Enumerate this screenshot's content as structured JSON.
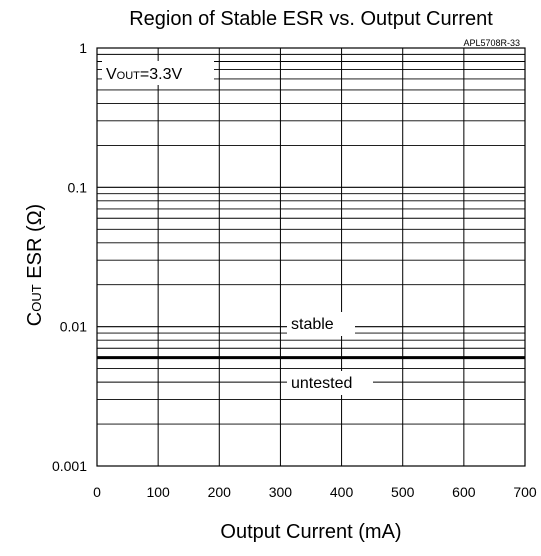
{
  "chart_data": {
    "type": "line",
    "title": "Region of Stable ESR vs. Output Current",
    "figure_id": "APL5708R-33",
    "xlabel": "Output Current (mA)",
    "ylabel": "COUT ESR (Ω)",
    "xlim": [
      0,
      700
    ],
    "ylim": [
      0.001,
      1
    ],
    "y_scale": "log",
    "grid": true,
    "x_ticks": [
      "0",
      "100",
      "200",
      "300",
      "400",
      "500",
      "600",
      "700"
    ],
    "y_ticks": [
      {
        "value": 1,
        "label": "1"
      },
      {
        "value": 0.1,
        "label": "0.1"
      },
      {
        "value": 0.01,
        "label": "0.01"
      },
      {
        "value": 0.001,
        "label": "0.001"
      }
    ],
    "series": [
      {
        "x": [
          0,
          700
        ],
        "y": [
          0.006,
          0.006
        ],
        "color": "#000000"
      }
    ],
    "annotations": {
      "condition_main": "V",
      "condition_sub": "OUT",
      "condition_value": "=3.3V",
      "region_above": "stable",
      "region_below": "untested"
    }
  }
}
